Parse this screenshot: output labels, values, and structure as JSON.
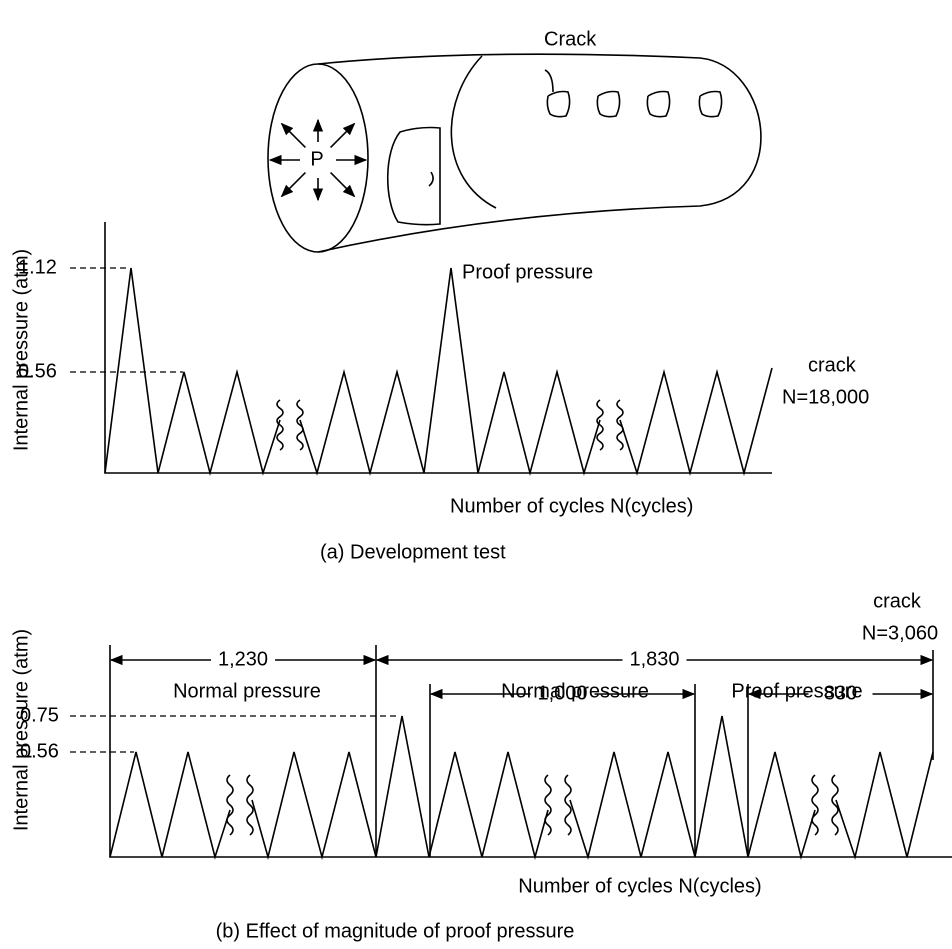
{
  "illustration": {
    "center_label": "P",
    "crack_label": "Crack"
  },
  "panel_a": {
    "y_axis_label": "Internal pressure (atm)",
    "y_labels": [
      "1.12",
      "0.56"
    ],
    "annotation": "Proof pressure",
    "crack_label": "crack",
    "crack_n": "N=18,000",
    "x_axis_label": "Number of cycles N(cycles)",
    "caption": "(a) Development test"
  },
  "panel_b": {
    "y_axis_label": "Internal pressure (atm)",
    "y_labels": [
      "0.75",
      "0.56"
    ],
    "crack_label": "crack",
    "crack_n": "N=3,060",
    "dimensions": [
      "1,230",
      "1,830",
      "1,000",
      "830"
    ],
    "region_labels": [
      "Normal pressure",
      "Normal pressure",
      "Proof pressure"
    ],
    "x_axis_label": "Number of cycles N(cycles)",
    "caption": "(b) Effect of magnitude of proof pressure"
  }
}
